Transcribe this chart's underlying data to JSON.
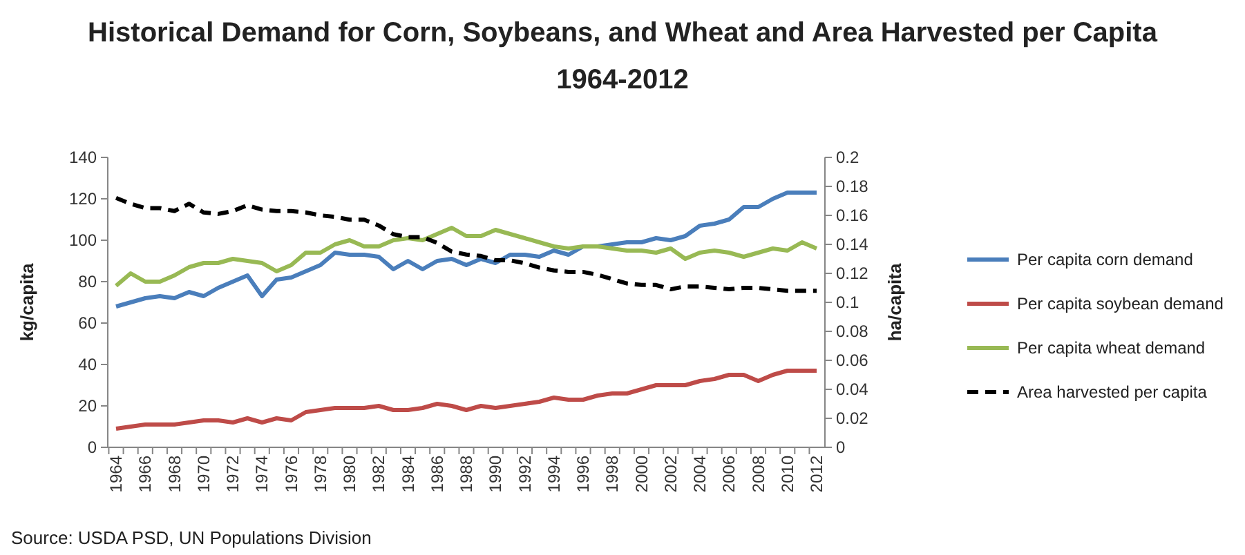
{
  "chart_data": {
    "type": "line",
    "title": "Historical Demand for Corn, Soybeans, and Wheat and Area Harvested per Capita",
    "subtitle": "1964-2012",
    "ylabel": "kg/capita",
    "y2label": "ha/capita",
    "categories": [
      "1964",
      null,
      "1966",
      null,
      "1968",
      null,
      "1970",
      null,
      "1972",
      null,
      "1974",
      null,
      "1976",
      null,
      "1978",
      null,
      "1980",
      null,
      "1982",
      null,
      "1984",
      null,
      "1986",
      null,
      "1988",
      null,
      "1990",
      null,
      "1992",
      null,
      "1994",
      null,
      "1996",
      null,
      "1998",
      null,
      "2000",
      null,
      "2002",
      null,
      "2004",
      null,
      "2006",
      null,
      "2008",
      null,
      "2010",
      null,
      "2012"
    ],
    "series": [
      {
        "name": "Per capita corn demand",
        "color": "#4a7ebb",
        "values": [
          68,
          70,
          72,
          73,
          72,
          75,
          73,
          77,
          80,
          83,
          73,
          81,
          82,
          85,
          88,
          94,
          93,
          93,
          92,
          86,
          90,
          86,
          90,
          91,
          88,
          91,
          89,
          93,
          93,
          92,
          95,
          93,
          97,
          97,
          98,
          99,
          99,
          101,
          100,
          102,
          107,
          108,
          110,
          116,
          116,
          120,
          123,
          123,
          123
        ]
      },
      {
        "name": "Per capita soybean demand",
        "color": "#be4b48",
        "values": [
          9,
          10,
          11,
          11,
          11,
          12,
          13,
          13,
          12,
          14,
          12,
          14,
          13,
          17,
          18,
          19,
          19,
          19,
          20,
          18,
          18,
          19,
          21,
          20,
          18,
          20,
          19,
          20,
          21,
          22,
          24,
          23,
          23,
          25,
          26,
          26,
          28,
          30,
          30,
          30,
          32,
          33,
          35,
          35,
          32,
          35,
          37,
          37,
          37
        ]
      },
      {
        "name": "Per capita wheat demand",
        "color": "#98b954",
        "values": [
          78,
          84,
          80,
          80,
          83,
          87,
          89,
          89,
          91,
          90,
          89,
          85,
          88,
          94,
          94,
          98,
          100,
          97,
          97,
          100,
          101,
          100,
          103,
          106,
          102,
          102,
          105,
          103,
          101,
          99,
          97,
          96,
          97,
          97,
          96,
          95,
          95,
          94,
          96,
          91,
          94,
          95,
          94,
          92,
          94,
          96,
          95,
          99,
          96
        ]
      },
      {
        "name": "Area harvested per capita",
        "color": "#000000",
        "axis": "y2",
        "line_style": "dashed",
        "values": [
          0.172,
          0.168,
          0.165,
          0.165,
          0.163,
          0.168,
          0.162,
          0.161,
          0.163,
          0.167,
          0.164,
          0.163,
          0.163,
          0.162,
          0.16,
          0.159,
          0.157,
          0.157,
          0.153,
          0.147,
          0.145,
          0.145,
          0.141,
          0.135,
          0.133,
          0.132,
          0.129,
          0.129,
          0.127,
          0.124,
          0.122,
          0.121,
          0.121,
          0.119,
          0.116,
          0.113,
          0.112,
          0.112,
          0.109,
          0.111,
          0.111,
          0.11,
          0.109,
          0.11,
          0.11,
          0.109,
          0.108,
          0.108,
          0.108
        ]
      }
    ],
    "ylim": [
      0,
      140
    ],
    "yticks": [
      0,
      20,
      40,
      60,
      80,
      100,
      120,
      140
    ],
    "y2lim": [
      0,
      0.2
    ],
    "y2ticks": [
      0,
      0.02,
      0.04,
      0.06,
      0.08,
      0.1,
      0.12,
      0.14,
      0.16,
      0.18,
      0.2
    ],
    "grid": false,
    "legend": "right",
    "line_style": "solid",
    "marker": "none",
    "annotations": [
      "Source: USDA PSD, UN Populations Division"
    ]
  }
}
